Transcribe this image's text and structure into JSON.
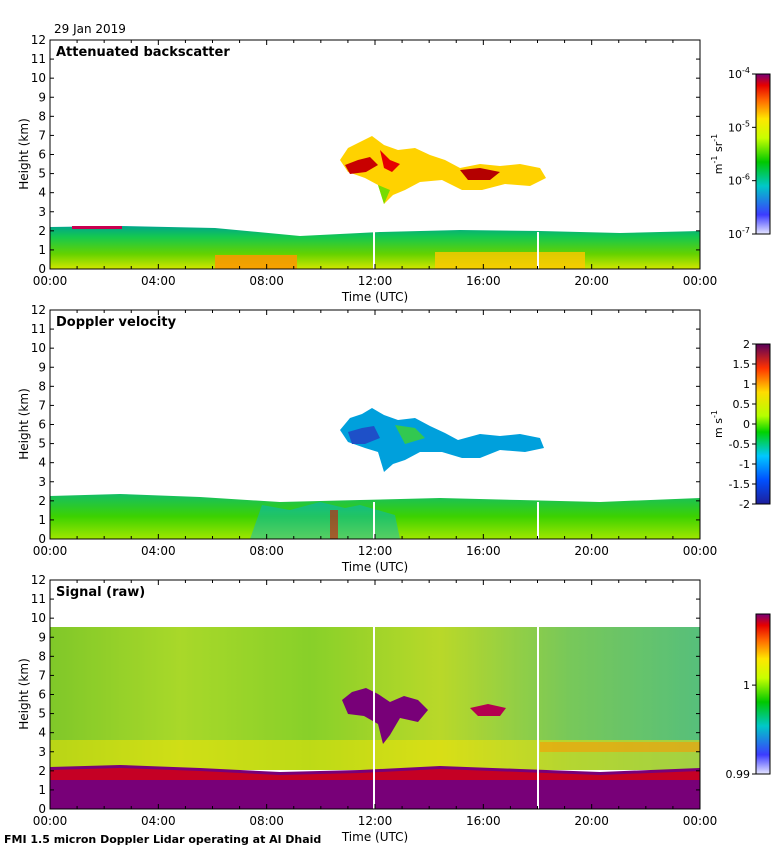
{
  "date_label": "29 Jan 2019",
  "footer": "FMI 1.5 micron Doppler Lidar operating at Al Dhaid",
  "chart_data": [
    {
      "type": "heatmap",
      "title": "Attenuated backscatter",
      "xlabel": "Time (UTC)",
      "ylabel": "Height (km)",
      "x_ticks": [
        "00:00",
        "04:00",
        "08:00",
        "12:00",
        "16:00",
        "20:00",
        "00:00"
      ],
      "y_ticks": [
        "0",
        "1",
        "2",
        "3",
        "4",
        "5",
        "6",
        "7",
        "8",
        "9",
        "10",
        "11",
        "12"
      ],
      "ylim": [
        0,
        12
      ],
      "xlim_hours": [
        0,
        24
      ],
      "colorbar": {
        "scale": "log",
        "range": [
          1e-07,
          0.0001
        ],
        "ticks": [
          {
            "base": "10",
            "exp": "-4",
            "value": 0.0001
          },
          {
            "base": "10",
            "exp": "-5",
            "value": 1e-05
          },
          {
            "base": "10",
            "exp": "-6",
            "value": 1e-06
          },
          {
            "base": "10",
            "exp": "-7",
            "value": 1e-07
          }
        ],
        "unit": {
          "m": "m",
          "m_exp": "-1",
          "sr": "sr",
          "sr_exp": "-1"
        }
      }
    },
    {
      "type": "heatmap",
      "title": "Doppler velocity",
      "xlabel": "Time (UTC)",
      "ylabel": "Height (km)",
      "x_ticks": [
        "00:00",
        "04:00",
        "08:00",
        "12:00",
        "16:00",
        "20:00",
        "00:00"
      ],
      "y_ticks": [
        "0",
        "1",
        "2",
        "3",
        "4",
        "5",
        "6",
        "7",
        "8",
        "9",
        "10",
        "11",
        "12"
      ],
      "ylim": [
        0,
        12
      ],
      "xlim_hours": [
        0,
        24
      ],
      "colorbar": {
        "scale": "linear",
        "range": [
          -2,
          2
        ],
        "ticks": [
          "2",
          "1.5",
          "1",
          "0.5",
          "0",
          "-0.5",
          "-1",
          "-1.5",
          "-2"
        ],
        "unit": {
          "m": "m",
          "s": "s",
          "s_exp": "-1"
        }
      }
    },
    {
      "type": "heatmap",
      "title": "Signal (raw)",
      "xlabel": "Time (UTC)",
      "ylabel": "Height (km)",
      "x_ticks": [
        "00:00",
        "04:00",
        "08:00",
        "12:00",
        "16:00",
        "20:00",
        "00:00"
      ],
      "y_ticks": [
        "0",
        "1",
        "2",
        "3",
        "4",
        "5",
        "6",
        "7",
        "8",
        "9",
        "10",
        "11",
        "12"
      ],
      "ylim": [
        0,
        12
      ],
      "xlim_hours": [
        0,
        24
      ],
      "colorbar": {
        "scale": "linear",
        "range": [
          0.99,
          1.008
        ],
        "ticks": [
          {
            "label": "1",
            "value": 1.0
          },
          {
            "label": "0.99",
            "value": 0.99
          }
        ]
      }
    }
  ]
}
